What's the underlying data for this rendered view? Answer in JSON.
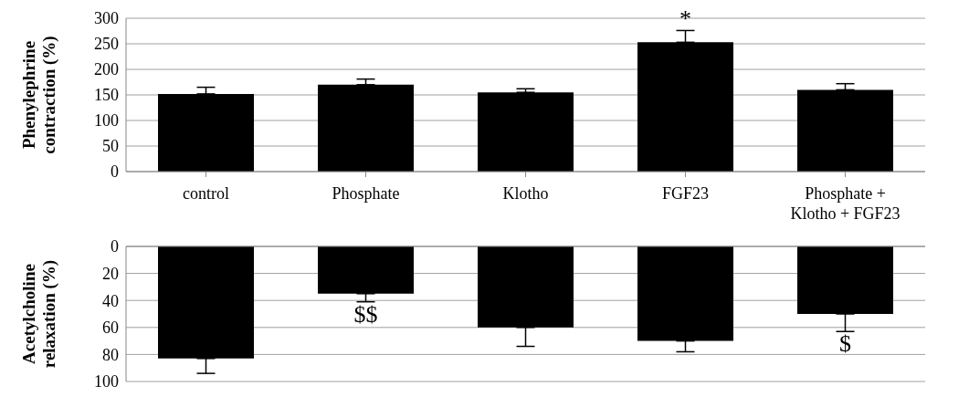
{
  "chart_data": [
    {
      "type": "bar",
      "ylabel": "Phenylephrine contraction (%)",
      "categories": [
        "control",
        "Phosphate",
        "Klotho",
        "FGF23",
        "Phosphate + Klotho + FGF23"
      ],
      "values": [
        152,
        170,
        155,
        253,
        160
      ],
      "color": "#000000",
      "errors": [
        [
          152,
          165
        ],
        [
          170,
          181
        ],
        [
          155,
          162
        ],
        [
          253,
          276
        ],
        [
          160,
          172
        ]
      ],
      "value_labels": [
        null,
        null,
        null,
        "*",
        null
      ],
      "ylim": [
        0,
        300
      ],
      "yticks": [
        0,
        50,
        100,
        150,
        200,
        250,
        300
      ],
      "grid": "y"
    },
    {
      "type": "bar",
      "ylabel": "Acetylcholine relaxation (%)",
      "categories": [
        null,
        null,
        null,
        null,
        null
      ],
      "values": [
        83,
        35,
        60,
        70,
        50
      ],
      "color": "#000000",
      "errors": [
        [
          83,
          94
        ],
        [
          35,
          41
        ],
        [
          60,
          74
        ],
        [
          70,
          78
        ],
        [
          50,
          63
        ]
      ],
      "value_labels": [
        null,
        "$$",
        null,
        null,
        "$"
      ],
      "ylim": [
        100,
        0
      ],
      "yticks": [
        0,
        20,
        40,
        60,
        80,
        100
      ],
      "grid": "y",
      "tick_labels": "y"
    }
  ]
}
